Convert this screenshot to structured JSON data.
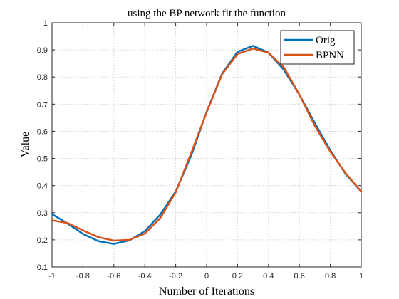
{
  "chart_data": {
    "type": "line",
    "title": "using the BP network fit the function",
    "xlabel": "Number of Iterations",
    "ylabel": "Value",
    "xlim": [
      -1,
      1
    ],
    "ylim": [
      0.1,
      1
    ],
    "xticks": [
      "-1",
      "-0.8",
      "-0.6",
      "-0.4",
      "-0.2",
      "0",
      "0.2",
      "0.4",
      "0.6",
      "0.8",
      "1"
    ],
    "yticks": [
      "0.1",
      "0.2",
      "0.3",
      "0.4",
      "0.5",
      "0.6",
      "0.7",
      "0.8",
      "0.9",
      "1"
    ],
    "grid": true,
    "legend_position": "top-right",
    "x": [
      -1,
      -0.9,
      -0.8,
      -0.7,
      -0.6,
      -0.5,
      -0.4,
      -0.3,
      -0.2,
      -0.1,
      0,
      0.1,
      0.2,
      0.3,
      0.4,
      0.5,
      0.6,
      0.7,
      0.8,
      0.9,
      1
    ],
    "series": [
      {
        "name": "Orig",
        "color": "#0072BD",
        "values": [
          0.295,
          0.26,
          0.222,
          0.195,
          0.185,
          0.198,
          0.232,
          0.293,
          0.378,
          0.51,
          0.672,
          0.812,
          0.893,
          0.915,
          0.89,
          0.826,
          0.735,
          0.63,
          0.53,
          0.442,
          0.378
        ]
      },
      {
        "name": "BPNN",
        "color": "#D95319",
        "values": [
          0.272,
          0.262,
          0.235,
          0.21,
          0.197,
          0.2,
          0.223,
          0.28,
          0.375,
          0.52,
          0.67,
          0.81,
          0.885,
          0.905,
          0.89,
          0.835,
          0.735,
          0.62,
          0.525,
          0.445,
          0.378
        ]
      }
    ]
  }
}
